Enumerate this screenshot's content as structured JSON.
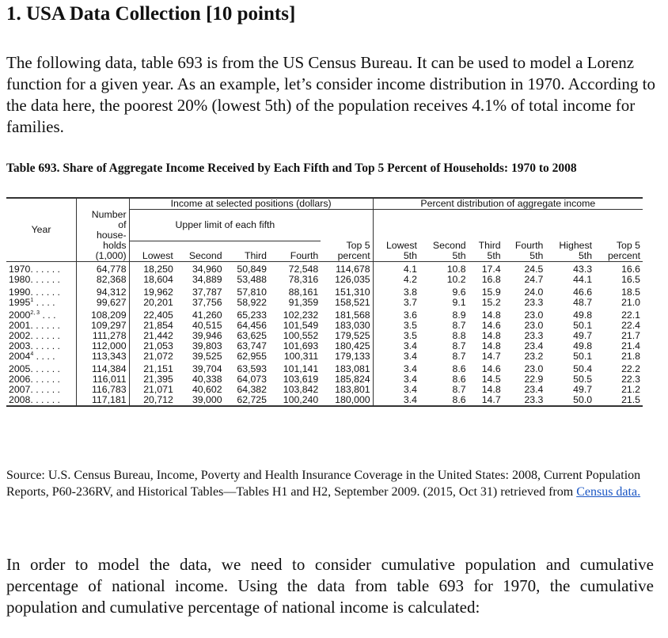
{
  "title": "1. USA Data Collection [10 points]",
  "intro": "The following data, table 693 is from the US Census Bureau. It can be used to model a Lorenz function for a given year. As an example, let’s consider income distribution in 1970. According to the data here, the poorest 20% (lowest 5th) of the population receives 4.1% of total income for families.",
  "caption": "Table 693. Share of Aggregate Income Received by Each Fifth and Top 5 Percent of Households: 1970 to 2008",
  "table": {
    "headers": {
      "year": "Year",
      "households": [
        "Number",
        "of",
        "house-",
        "holds",
        "(1,000)"
      ],
      "income_group": "Income at selected positions (dollars)",
      "upper_limit": "Upper limit of each fifth",
      "income_cols": [
        "Lowest",
        "Second",
        "Third",
        "Fourth"
      ],
      "top5_income": [
        "Top 5",
        "percent"
      ],
      "pct_group": "Percent distribution of aggregate income",
      "pct_cols": [
        [
          "Lowest",
          "5th"
        ],
        [
          "Second",
          "5th"
        ],
        [
          "Third",
          "5th"
        ],
        [
          "Fourth",
          "5th"
        ],
        [
          "Highest",
          "5th"
        ],
        [
          "Top 5",
          "percent"
        ]
      ]
    },
    "groups": [
      [
        {
          "year": "1970. . . . . .",
          "sup": "",
          "hh": "64,778",
          "inc": [
            "18,250",
            "34,960",
            "50,849",
            "72,548",
            "114,678"
          ],
          "pct": [
            "4.1",
            "10.8",
            "17.4",
            "24.5",
            "43.3",
            "16.6"
          ]
        },
        {
          "year": "1980. . . . . .",
          "sup": "",
          "hh": "82,368",
          "inc": [
            "18,604",
            "34,889",
            "53,488",
            "78,316",
            "126,035"
          ],
          "pct": [
            "4.2",
            "10.2",
            "16.8",
            "24.7",
            "44.1",
            "16.5"
          ]
        }
      ],
      [
        {
          "year": "1990. . . . . .",
          "sup": "",
          "hh": "94,312",
          "inc": [
            "19,962",
            "37,787",
            "57,810",
            "88,161",
            "151,310"
          ],
          "pct": [
            "3.8",
            "9.6",
            "15.9",
            "24.0",
            "46.6",
            "18.5"
          ]
        },
        {
          "year": "1995",
          "sup": "1",
          "tail": " . . . .",
          "hh": "99,627",
          "inc": [
            "20,201",
            "37,756",
            "58,922",
            "91,359",
            "158,521"
          ],
          "pct": [
            "3.7",
            "9.1",
            "15.2",
            "23.3",
            "48.7",
            "21.0"
          ]
        }
      ],
      [
        {
          "year": "2000",
          "sup": "2, 3",
          "tail": " . . .",
          "hh": "108,209",
          "inc": [
            "22,405",
            "41,260",
            "65,233",
            "102,232",
            "181,568"
          ],
          "pct": [
            "3.6",
            "8.9",
            "14.8",
            "23.0",
            "49.8",
            "22.1"
          ]
        },
        {
          "year": "2001. . . . . .",
          "sup": "",
          "hh": "109,297",
          "inc": [
            "21,854",
            "40,515",
            "64,456",
            "101,549",
            "183,030"
          ],
          "pct": [
            "3.5",
            "8.7",
            "14.6",
            "23.0",
            "50.1",
            "22.4"
          ]
        },
        {
          "year": "2002. . . . . .",
          "sup": "",
          "hh": "111,278",
          "inc": [
            "21,442",
            "39,946",
            "63,625",
            "100,552",
            "179,525"
          ],
          "pct": [
            "3.5",
            "8.8",
            "14.8",
            "23.3",
            "49.7",
            "21.7"
          ]
        },
        {
          "year": "2003. . . . . .",
          "sup": "",
          "hh": "112,000",
          "inc": [
            "21,053",
            "39,803",
            "63,747",
            "101,693",
            "180,425"
          ],
          "pct": [
            "3.4",
            "8.7",
            "14.8",
            "23.4",
            "49.8",
            "21.4"
          ]
        },
        {
          "year": "2004",
          "sup": "4",
          "tail": " . . . .",
          "hh": "113,343",
          "inc": [
            "21,072",
            "39,525",
            "62,955",
            "100,311",
            "179,133"
          ],
          "pct": [
            "3.4",
            "8.7",
            "14.7",
            "23.2",
            "50.1",
            "21.8"
          ]
        }
      ],
      [
        {
          "year": "2005. . . . . .",
          "sup": "",
          "hh": "114,384",
          "inc": [
            "21,151",
            "39,704",
            "63,593",
            "101,141",
            "183,081"
          ],
          "pct": [
            "3.4",
            "8.6",
            "14.6",
            "23.0",
            "50.4",
            "22.2"
          ]
        },
        {
          "year": "2006. . . . . .",
          "sup": "",
          "hh": "116,011",
          "inc": [
            "21,395",
            "40,338",
            "64,073",
            "103,619",
            "185,824"
          ],
          "pct": [
            "3.4",
            "8.6",
            "14.5",
            "22.9",
            "50.5",
            "22.3"
          ]
        },
        {
          "year": "2007. . . . . .",
          "sup": "",
          "hh": "116,783",
          "inc": [
            "21,071",
            "40,602",
            "64,382",
            "103,842",
            "183,801"
          ],
          "pct": [
            "3.4",
            "8.7",
            "14.8",
            "23.4",
            "49.7",
            "21.2"
          ]
        },
        {
          "year": "2008. . . . . .",
          "sup": "",
          "hh": "117,181",
          "inc": [
            "20,712",
            "39,000",
            "62,725",
            "100,240",
            "180,000"
          ],
          "pct": [
            "3.4",
            "8.6",
            "14.7",
            "23.3",
            "50.0",
            "21.5"
          ]
        }
      ]
    ]
  },
  "source": {
    "text1": "Source: U.S. Census Bureau, Income, Poverty and Health Insurance Coverage in the United States: 2008, Current Population",
    "text2": "Reports, P60-236RV, and Historical Tables—Tables H1 and H2, September 2009.  (2015, Oct 31) retrieved from ",
    "link": "Census data.",
    "link_color": "#1a56c4"
  },
  "closing": "In order to model the data, we need to consider cumulative population and cumulative percentage of national income. Using the data from table 693 for 1970, the cumulative population and cumulative percentage of national income is calculated:"
}
